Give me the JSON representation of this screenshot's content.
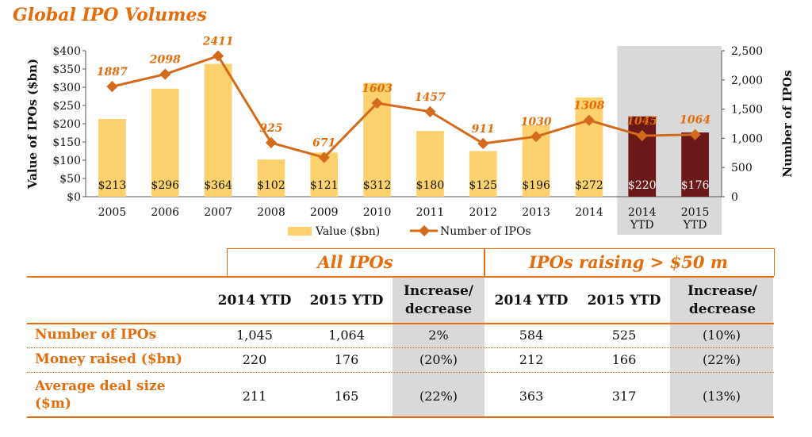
{
  "title": "Global IPO Volumes",
  "chart_data": {
    "type": "bar+line",
    "categories": [
      "2005",
      "2006",
      "2007",
      "2008",
      "2009",
      "2010",
      "2011",
      "2012",
      "2013",
      "2014",
      "2014\nYTD",
      "2015\nYTD"
    ],
    "series": [
      {
        "name": "Value ($bn)",
        "type": "bar",
        "axis": "left",
        "values": [
          213,
          296,
          364,
          102,
          121,
          312,
          180,
          125,
          196,
          272,
          220,
          176
        ],
        "labels": [
          "$213",
          "$296",
          "$364",
          "$102",
          "$121",
          "$312",
          "$180",
          "$125",
          "$196",
          "$272",
          "$220",
          "$176"
        ]
      },
      {
        "name": "Number of IPOs",
        "type": "line",
        "axis": "right",
        "values": [
          1887,
          2098,
          2411,
          925,
          671,
          1603,
          1457,
          911,
          1030,
          1308,
          1045,
          1064
        ],
        "labels": [
          "1887",
          "2098",
          "2411",
          "925",
          "671",
          "1603",
          "1457",
          "911",
          "1030",
          "1308",
          "1045",
          "1064"
        ]
      }
    ],
    "highlight_categories": [
      10,
      11
    ],
    "ylabel": "Value of IPOs ($bn)",
    "y2label": "Number of IPOs",
    "ylim": [
      0,
      400
    ],
    "y2lim": [
      0,
      2500
    ],
    "yticks": [
      "$0",
      "$50",
      "$100",
      "$150",
      "$200",
      "$250",
      "$300",
      "$350",
      "$400"
    ],
    "y2ticks": [
      "0",
      "500",
      "1,000",
      "1,500",
      "2,000",
      "2,500"
    ],
    "legend": [
      "Value ($bn)",
      "Number of IPOs"
    ],
    "colors": {
      "bar": "#fdd26e",
      "bar_highlight": "#6b1818",
      "line": "#d46a1b",
      "shade": "#d9d9d9",
      "label": "#e46c0a"
    }
  },
  "table": {
    "group_all": "All IPOs",
    "group_big": "IPOs raising > $50 m",
    "columns": [
      "2014 YTD",
      "2015 YTD",
      "Increase/ decrease",
      "2014 YTD",
      "2015 YTD",
      "Increase/ decrease"
    ],
    "rows": [
      {
        "label": "Number of IPOs",
        "cells": [
          "1,045",
          "1,064",
          "2%",
          "584",
          "525",
          "(10%)"
        ]
      },
      {
        "label": "Money raised ($bn)",
        "cells": [
          "220",
          "176",
          "(20%)",
          "212",
          "166",
          "(22%)"
        ]
      },
      {
        "label": "Average deal size ($m)",
        "cells": [
          "211",
          "165",
          "(22%)",
          "363",
          "317",
          "(13%)"
        ]
      }
    ]
  }
}
